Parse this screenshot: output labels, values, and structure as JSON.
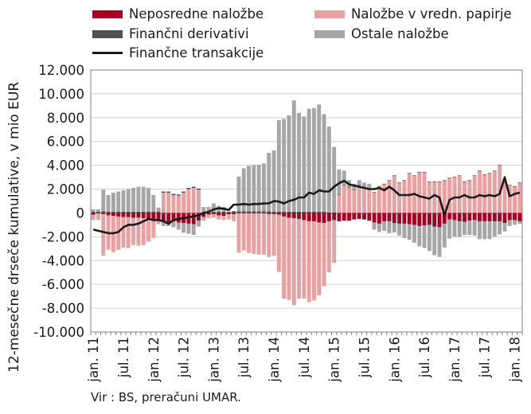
{
  "chart_data": {
    "type": "bar",
    "stacked": true,
    "ylabel": "12-mesečne drseče kumulative, v mio EUR",
    "source_note": "Vir : BS, preračuni UMAR.",
    "ylim": [
      -10000,
      12000
    ],
    "yticks": [
      -10000,
      -8000,
      -6000,
      -4000,
      -2000,
      0,
      2000,
      4000,
      6000,
      8000,
      10000,
      12000
    ],
    "ytick_labels": [
      "-10.000",
      "-8.000",
      "-6.000",
      "-4.000",
      "-2.000",
      "0",
      "2.000",
      "4.000",
      "6.000",
      "8.000",
      "10.000",
      "12.000"
    ],
    "x_tick_labels": [
      "jan. 11",
      "jul. 11",
      "jan. 12",
      "jul. 12",
      "jan. 13",
      "jul. 13",
      "jan. 14",
      "jul. 14",
      "jan. 15",
      "jul. 15",
      "jan. 16",
      "jul. 16",
      "jan. 17",
      "jul. 17",
      "jan. 18"
    ],
    "x_tick_month_index": [
      0,
      6,
      12,
      18,
      24,
      30,
      36,
      42,
      48,
      54,
      60,
      66,
      72,
      78,
      84
    ],
    "n_months": 86,
    "grid": "horizontal",
    "legend_position": "top",
    "series": [
      {
        "name": "Neposredne naložbe",
        "kind": "bar",
        "color": "#a50021",
        "values": [
          -150,
          -50,
          -100,
          -200,
          -250,
          -300,
          -350,
          -350,
          -400,
          -400,
          -450,
          -500,
          -550,
          -650,
          -700,
          -800,
          -700,
          -800,
          -850,
          -900,
          -950,
          -650,
          -350,
          -150,
          -100,
          -200,
          -250,
          -100,
          -100,
          -50,
          -50,
          -50,
          -50,
          -50,
          -50,
          -100,
          -100,
          -150,
          -300,
          -400,
          -450,
          -500,
          -600,
          -700,
          -700,
          -800,
          -850,
          -700,
          -600,
          -700,
          -650,
          -650,
          -550,
          -500,
          -550,
          -650,
          -800,
          -900,
          -700,
          -700,
          -850,
          -900,
          -900,
          -950,
          -1000,
          -1100,
          -1050,
          -1000,
          -1150,
          -1200,
          -900,
          -550,
          -600,
          -700,
          -750,
          -650,
          -600,
          -700,
          -700,
          -700,
          -700,
          -700,
          -850,
          -600,
          -600,
          -700
        ]
      },
      {
        "name": "Naložbe v vredn. papirje",
        "kind": "bar",
        "color": "#e8a0a0",
        "values": [
          -450,
          -550,
          -3500,
          -2900,
          -3050,
          -2800,
          -2550,
          -2600,
          -2300,
          -2350,
          -2250,
          -1900,
          -1550,
          -300,
          1700,
          1700,
          1500,
          1450,
          1700,
          2000,
          2100,
          1950,
          -300,
          -300,
          -300,
          -350,
          -350,
          -450,
          -600,
          -3300,
          -3100,
          -3300,
          -3400,
          -3450,
          -3450,
          -3600,
          -3500,
          -4800,
          -6900,
          -6900,
          -7300,
          -6700,
          -6600,
          -6800,
          -6650,
          -6100,
          -5300,
          -4300,
          -3600,
          1500,
          2300,
          2100,
          1900,
          2300,
          2100,
          2000,
          1700,
          2200,
          2400,
          2700,
          3100,
          2500,
          2700,
          3300,
          3100,
          3400,
          3400,
          2600,
          2600,
          2600,
          2700,
          2900,
          3000,
          3100,
          2600,
          2700,
          3100,
          3500,
          3200,
          3300,
          3500,
          4000,
          2500,
          2300,
          2200,
          2500
        ]
      },
      {
        "name": "Finančni derivativi",
        "kind": "bar",
        "color": "#505050",
        "values": [
          100,
          100,
          150,
          100,
          100,
          100,
          100,
          100,
          100,
          100,
          100,
          100,
          100,
          100,
          100,
          100,
          100,
          100,
          100,
          100,
          100,
          100,
          100,
          100,
          100,
          100,
          100,
          100,
          150,
          150,
          150,
          150,
          150,
          150,
          150,
          150,
          100,
          100,
          100,
          100,
          100,
          100,
          100,
          100,
          100,
          100,
          100,
          50,
          50,
          50,
          50,
          50,
          50,
          50,
          50,
          50,
          50,
          50,
          50,
          50,
          50,
          50,
          50,
          50,
          50,
          50,
          50,
          50,
          50,
          50,
          50,
          50,
          50,
          50,
          50,
          50,
          50,
          50,
          50,
          50,
          50,
          50,
          50,
          50,
          50,
          50
        ]
      },
      {
        "name": "Ostale naložbe",
        "kind": "bar",
        "color": "#a6a6a6",
        "values": [
          200,
          200,
          1800,
          1400,
          1600,
          1700,
          1800,
          1900,
          2000,
          2100,
          2100,
          2000,
          1400,
          350,
          -400,
          -300,
          -500,
          -600,
          -800,
          -850,
          -900,
          -500,
          400,
          400,
          700,
          500,
          400,
          0,
          0,
          2900,
          3600,
          3800,
          3900,
          3900,
          4000,
          4900,
          5150,
          7700,
          7800,
          8100,
          9350,
          8300,
          8000,
          8650,
          8700,
          9000,
          8200,
          7200,
          5500,
          2100,
          1200,
          600,
          500,
          400,
          400,
          400,
          -600,
          -700,
          -800,
          -1000,
          -800,
          -1000,
          -1200,
          -1300,
          -1500,
          -1700,
          -1900,
          -2200,
          -2400,
          -2500,
          -2000,
          -1600,
          -1400,
          -1300,
          -1100,
          -1200,
          -1300,
          -1500,
          -1500,
          -1500,
          -1300,
          -1100,
          -700,
          -500,
          -400,
          -200
        ]
      },
      {
        "name": "Finančne transakcije",
        "kind": "line",
        "color": "#1a1a1a",
        "values": [
          -1400,
          -1500,
          -1600,
          -1700,
          -1700,
          -1600,
          -1200,
          -1000,
          -1000,
          -900,
          -700,
          -500,
          -600,
          -600,
          -700,
          -900,
          -600,
          -500,
          -450,
          -350,
          -300,
          -200,
          0,
          100,
          300,
          400,
          350,
          250,
          700,
          700,
          750,
          700,
          750,
          750,
          800,
          800,
          1000,
          950,
          800,
          1000,
          1100,
          1300,
          1300,
          1700,
          1600,
          1900,
          1800,
          1800,
          2200,
          2500,
          2700,
          2400,
          2300,
          2200,
          2100,
          2000,
          2000,
          2100,
          1900,
          2200,
          1900,
          1500,
          1500,
          1500,
          1600,
          1400,
          1300,
          1200,
          1500,
          1300,
          -200,
          1100,
          1300,
          1300,
          1500,
          1300,
          1300,
          1500,
          1400,
          1500,
          1400,
          1600,
          3000,
          1400,
          1600,
          1700
        ]
      }
    ]
  }
}
